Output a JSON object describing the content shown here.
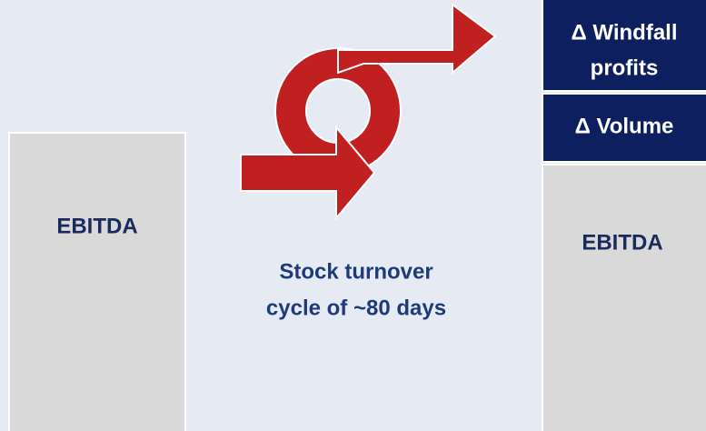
{
  "left_bar": {
    "label": "EBITDA"
  },
  "right_bar": {
    "label": "EBITDA",
    "segments": [
      {
        "lines": [
          "Δ Windfall",
          "profits"
        ]
      },
      {
        "lines": [
          "Δ Volume"
        ]
      }
    ]
  },
  "caption": {
    "lines": [
      "Stock turnover",
      "cycle of ~80 days"
    ]
  }
}
